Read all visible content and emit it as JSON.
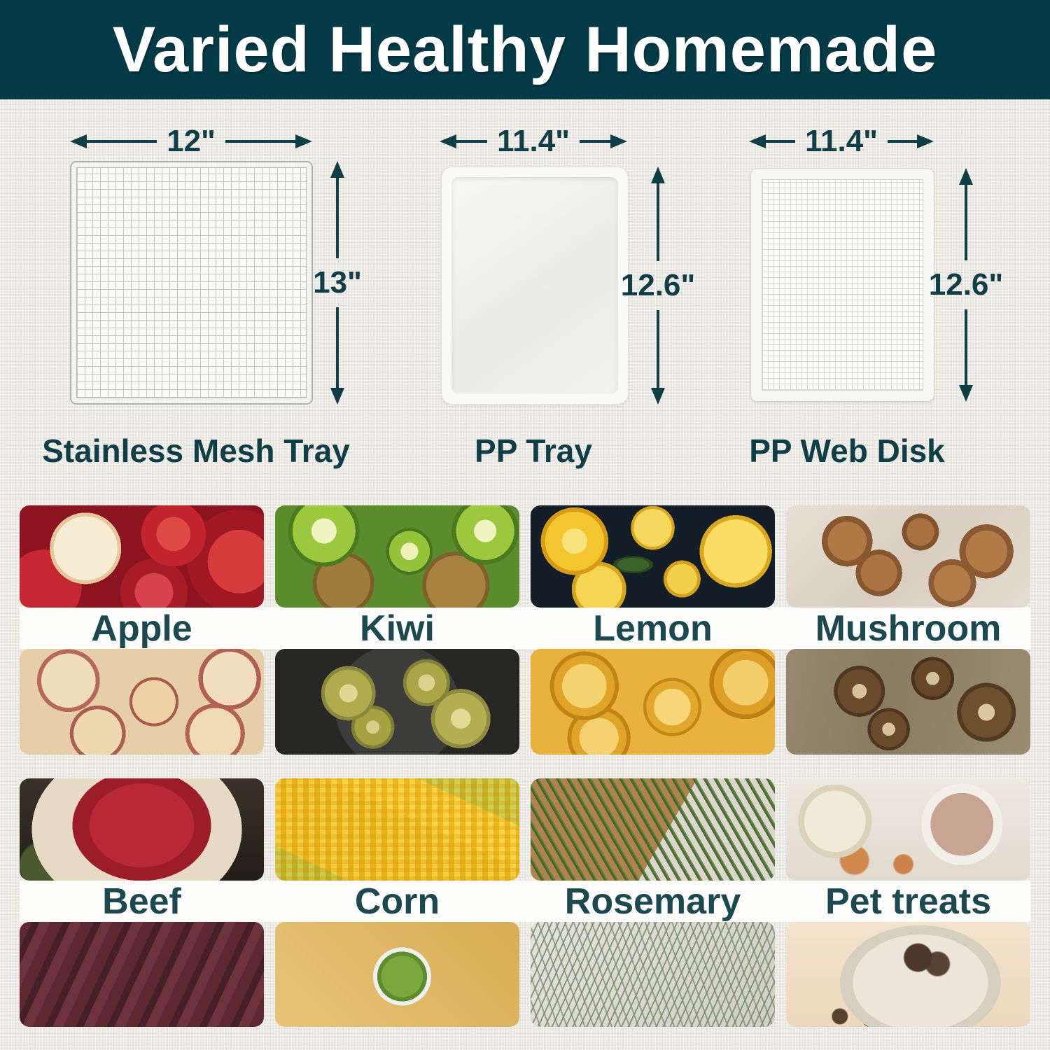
{
  "banner": {
    "title": "Varied Healthy Homemade"
  },
  "trays": [
    {
      "name": "Stainless Mesh Tray",
      "width": "12\"",
      "height": "13\""
    },
    {
      "name": "PP Tray",
      "width": "11.4\"",
      "height": "12.6\""
    },
    {
      "name": "PP Web Disk",
      "width": "11.4\"",
      "height": "12.6\""
    }
  ],
  "foods": [
    {
      "label": "Apple"
    },
    {
      "label": "Kiwi"
    },
    {
      "label": "Lemon"
    },
    {
      "label": "Mushroom"
    },
    {
      "label": "Beef"
    },
    {
      "label": "Corn"
    },
    {
      "label": "Rosemary"
    },
    {
      "label": "Pet treats"
    }
  ],
  "colors": {
    "banner_bg": "#053b47",
    "accent_text": "#0f3e46",
    "food_label_text": "#1c4850",
    "page_bg": "#e9e7e0",
    "label_band_bg": "#fdfdfc"
  }
}
